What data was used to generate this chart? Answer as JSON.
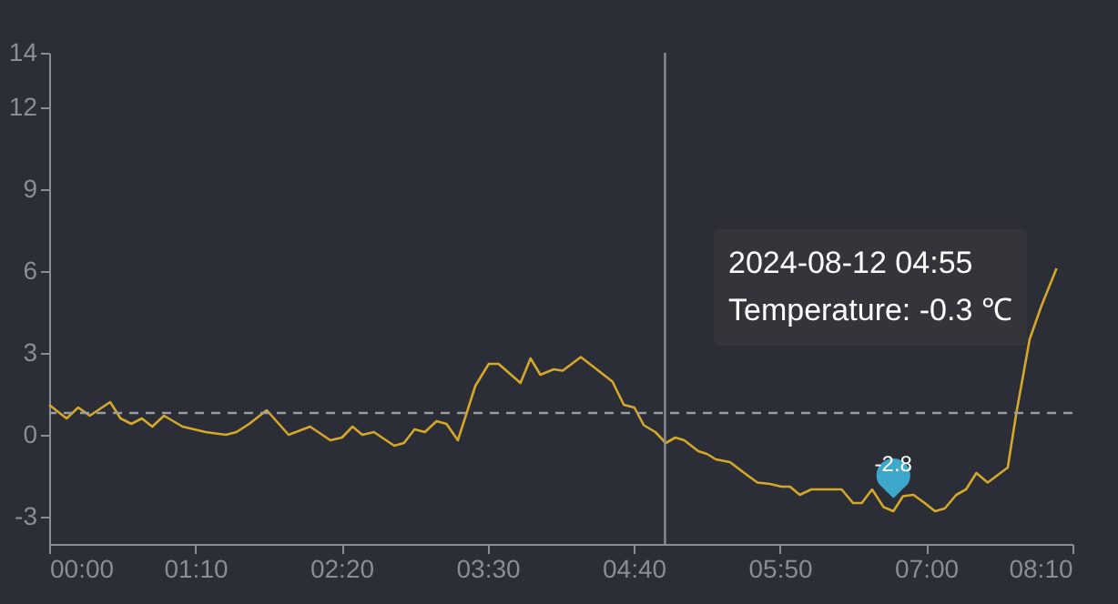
{
  "chart_data": {
    "type": "line",
    "x": [
      0,
      0.139,
      0.232,
      0.324,
      0.487,
      0.57,
      0.657,
      0.74,
      0.823,
      0.917,
      1.065,
      1.25,
      1.412,
      1.495,
      1.597,
      1.737,
      1.912,
      2.083,
      2.245,
      2.338,
      2.422,
      2.5,
      2.593,
      2.755,
      2.833,
      2.917,
      3.0,
      3.093,
      3.172,
      3.263,
      3.403,
      3.51,
      3.588,
      3.763,
      3.843,
      3.922,
      4.028,
      4.1,
      4.245,
      4.497,
      4.588,
      4.672,
      4.748,
      4.84,
      4.923,
      5.0,
      5.07,
      5.183,
      5.252,
      5.322,
      5.435,
      5.55,
      5.655,
      5.755,
      5.847,
      5.915,
      5.993,
      6.085,
      6.327,
      6.418,
      6.488,
      6.57,
      6.662,
      6.74,
      6.817,
      6.9,
      6.99,
      7.073,
      7.15,
      7.242,
      7.32,
      7.403,
      7.493,
      7.653,
      7.722,
      7.828,
      7.92,
      8.043
    ],
    "series": [
      {
        "color": "#d4a82a",
        "values": [
          1.1,
          0.6,
          1.0,
          0.7,
          1.2,
          0.6,
          0.4,
          0.6,
          0.3,
          0.7,
          0.3,
          0.1,
          0.0,
          0.1,
          0.4,
          0.9,
          0.0,
          0.3,
          -0.2,
          -0.1,
          0.3,
          0.0,
          0.1,
          -0.4,
          -0.3,
          0.2,
          0.1,
          0.5,
          0.4,
          -0.2,
          1.8,
          2.6,
          2.6,
          1.9,
          2.8,
          2.2,
          2.4,
          2.35,
          2.85,
          1.95,
          1.1,
          1.0,
          0.35,
          0.1,
          -0.3,
          -0.1,
          -0.2,
          -0.6,
          -0.7,
          -0.9,
          -1.0,
          -1.4,
          -1.75,
          -1.8,
          -1.9,
          -1.9,
          -2.2,
          -2.0,
          -2.0,
          -2.5,
          -2.5,
          -2.0,
          -2.65,
          -2.8,
          -2.25,
          -2.2,
          -2.5,
          -2.8,
          -2.7,
          -2.2,
          -2.0,
          -1.4,
          -1.75,
          -1.2,
          0.8,
          3.5,
          4.7,
          6.1
        ]
      }
    ],
    "xlim": [
      0,
      8.17
    ],
    "xticks": [
      {
        "value": 0,
        "label": "00:00"
      },
      {
        "value": 1.1667,
        "label": "01:10"
      },
      {
        "value": 2.3333,
        "label": "02:20"
      },
      {
        "value": 3.5,
        "label": "03:30"
      },
      {
        "value": 4.6667,
        "label": "04:40"
      },
      {
        "value": 5.8333,
        "label": "05:50"
      },
      {
        "value": 7,
        "label": "07:00"
      },
      {
        "value": 8.1667,
        "label": "08:10"
      }
    ],
    "ylim": [
      -4,
      14
    ],
    "yticks": [
      -3,
      0,
      3,
      6,
      9,
      12,
      14
    ],
    "grid": false,
    "marker": "none",
    "line_style": "solid",
    "ref_lines": [
      {
        "axis": "y",
        "value": 0.8,
        "color": "#9a9ca3",
        "line_style": "dashed"
      },
      {
        "axis": "x",
        "value": 4.9167,
        "color": "#8c8e94",
        "line_style": "solid"
      }
    ],
    "annotations": [
      {
        "text": "-2.8",
        "x": 6.74,
        "y": -2.8
      },
      "2024-08-12 04:55",
      "Temperature: -0.3 ℃"
    ]
  }
}
